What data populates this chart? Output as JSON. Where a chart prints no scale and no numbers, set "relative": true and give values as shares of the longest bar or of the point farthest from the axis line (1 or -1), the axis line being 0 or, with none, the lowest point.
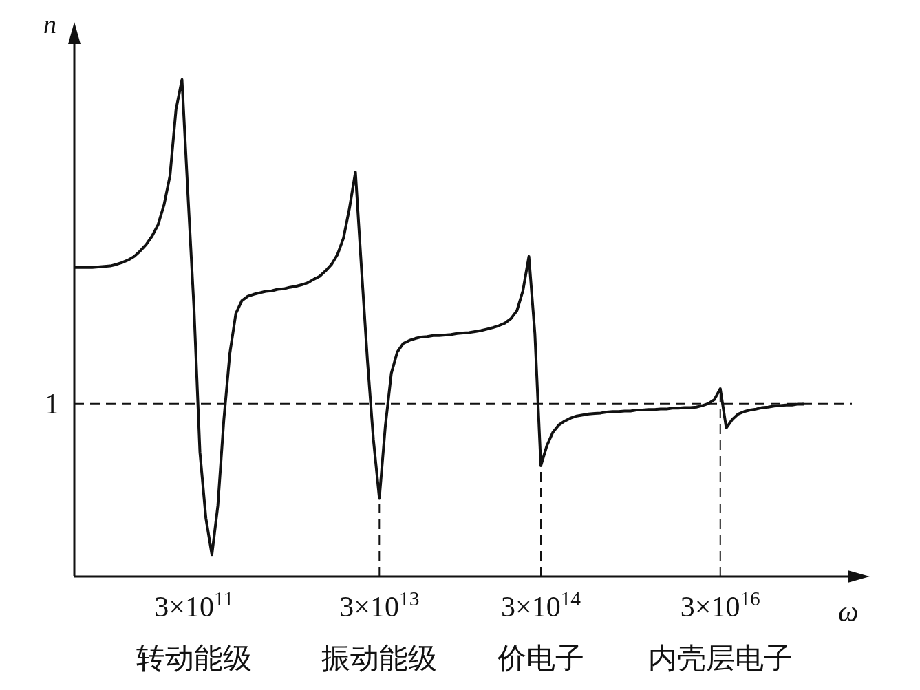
{
  "chart_data": {
    "type": "line",
    "relative": true,
    "xlabel": "ω",
    "ylabel": "n",
    "color": "#111111",
    "categories": [
      null,
      null,
      null,
      null,
      null,
      null,
      null,
      null,
      null,
      null,
      null,
      null,
      null,
      null,
      null,
      null,
      null,
      null,
      null,
      null,
      "3×10$^{11}$\n转动能级",
      null,
      null,
      null,
      null,
      null,
      null,
      null,
      null,
      null,
      null,
      null,
      null,
      null,
      null,
      null,
      null,
      null,
      null,
      null,
      null,
      null,
      null,
      null,
      null,
      null,
      null,
      null,
      null,
      null,
      null,
      "3×10$^{13}$\n振动能级",
      null,
      null,
      null,
      null,
      null,
      null,
      null,
      null,
      null,
      null,
      null,
      null,
      null,
      null,
      null,
      null,
      null,
      null,
      null,
      null,
      null,
      null,
      null,
      null,
      null,
      null,
      "3×10$^{14}$\n价电子",
      null,
      null,
      null,
      null,
      null,
      null,
      null,
      null,
      null,
      null,
      null,
      null,
      null,
      null,
      null,
      null,
      null,
      null,
      null,
      null,
      null,
      null,
      null,
      null,
      null,
      null,
      null,
      null,
      null,
      "3×10$^{16}$\n内壳层电子",
      null,
      null,
      null,
      null,
      null,
      null,
      null,
      null,
      null,
      null,
      null,
      null,
      null,
      null,
      null,
      null,
      null,
      null,
      null,
      null,
      null,
      null
    ],
    "values": [
      0.622,
      0.622,
      0.622,
      0.622,
      0.623,
      0.624,
      0.625,
      0.628,
      0.632,
      0.637,
      0.644,
      0.655,
      0.668,
      0.685,
      0.708,
      0.748,
      0.807,
      0.94,
      1,
      0.768,
      0.542,
      0.25,
      0.117,
      0.044,
      0.143,
      0.316,
      0.449,
      0.529,
      0.555,
      0.564,
      0.568,
      0.571,
      0.574,
      0.575,
      0.578,
      0.579,
      0.582,
      0.584,
      0.587,
      0.591,
      0.598,
      0.604,
      0.615,
      0.628,
      0.648,
      0.681,
      0.741,
      0.814,
      0.622,
      0.436,
      0.276,
      0.157,
      0.303,
      0.409,
      0.452,
      0.469,
      0.475,
      0.479,
      0.482,
      0.483,
      0.485,
      0.485,
      0.486,
      0.487,
      0.489,
      0.49,
      0.491,
      0.493,
      0.495,
      0.498,
      0.501,
      0.505,
      0.51,
      0.519,
      0.535,
      0.575,
      0.644,
      0.489,
      0.223,
      0.263,
      0.29,
      0.305,
      0.313,
      0.319,
      0.323,
      0.325,
      0.327,
      0.328,
      0.329,
      0.331,
      0.332,
      0.332,
      0.333,
      0.333,
      0.335,
      0.335,
      0.336,
      0.336,
      0.337,
      0.337,
      0.339,
      0.339,
      0.34,
      0.34,
      0.341,
      0.344,
      0.348,
      0.356,
      0.378,
      0.299,
      0.316,
      0.327,
      0.332,
      0.335,
      0.337,
      0.34,
      0.341,
      0.343,
      0.344,
      0.345,
      0.345,
      0.347,
      0.347,
      null,
      null,
      null,
      null,
      null,
      null,
      null,
      null
    ],
    "annotations": [
      "1"
    ],
    "ref_lines": [
      {
        "axis": "y",
        "value": 0.348,
        "line_style": "dashed"
      },
      {
        "axis": "x",
        "value": "3×10$^{13}$\n振动能级",
        "line_style": "dashed"
      },
      {
        "axis": "x",
        "value": "3×10$^{14}$\n价电子",
        "line_style": "dashed"
      },
      {
        "axis": "x",
        "value": "3×10$^{16}$\n内壳层电子",
        "line_style": "dashed"
      }
    ]
  }
}
